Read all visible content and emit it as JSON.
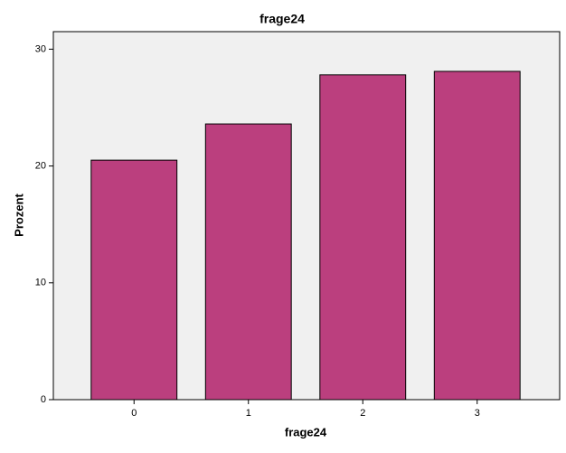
{
  "chart_data": {
    "type": "bar",
    "title": "frage24",
    "x_label": "frage24",
    "y_label": "Prozent",
    "categories": [
      "0",
      "1",
      "2",
      "3"
    ],
    "values": [
      20.5,
      23.6,
      27.8,
      28.1
    ],
    "color": "#bb3f7e",
    "ylim": [
      0,
      31.5
    ],
    "yticks": [
      0,
      10,
      20,
      30
    ],
    "grid": false
  }
}
